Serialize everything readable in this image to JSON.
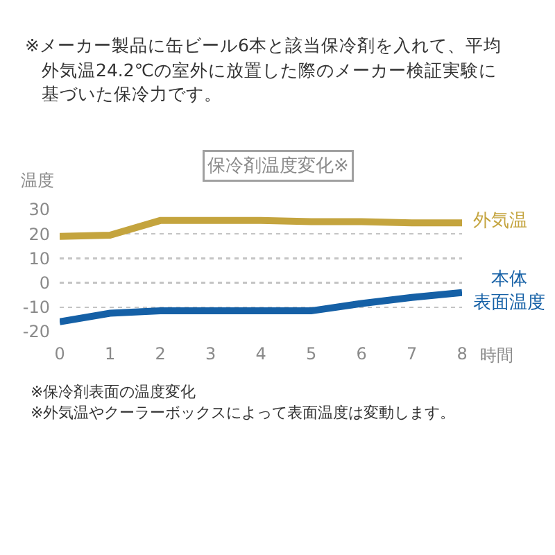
{
  "chart_data": {
    "type": "line",
    "title": "保冷剤温度変化※",
    "xlabel": "時間",
    "ylabel": "温度",
    "x": [
      0,
      1,
      2,
      3,
      4,
      5,
      6,
      7,
      8
    ],
    "series": [
      {
        "name": "外気温",
        "color": "#c4a43e",
        "values": [
          19,
          19.5,
          25.5,
          25.5,
          25.5,
          25,
          25,
          24.5,
          24.5
        ]
      },
      {
        "name": "本体表面温度",
        "color": "#1560a6",
        "values": [
          -16,
          -12.5,
          -11.5,
          -11.5,
          -11.5,
          -11.5,
          -8.5,
          -6,
          -4
        ]
      }
    ],
    "xlim": [
      0,
      8
    ],
    "xticks": [
      0,
      1,
      2,
      3,
      4,
      5,
      6,
      7,
      8
    ],
    "ylim": [
      -20,
      30
    ],
    "yticks": [
      -20,
      -10,
      0,
      10,
      20,
      30
    ],
    "grid": "y",
    "legend": false,
    "marker": "none",
    "line_style": "solid",
    "annotations": [
      "※メーカー製品に缶ビール6本と該当保冷剤を入れて、平均外気温24.2℃の室外に放置した際のメーカー検証実験に基づいた保冷力です。",
      "※保冷剤表面の温度変化",
      "※外気温やクーラーボックスによって表面温度は変動します。"
    ]
  }
}
